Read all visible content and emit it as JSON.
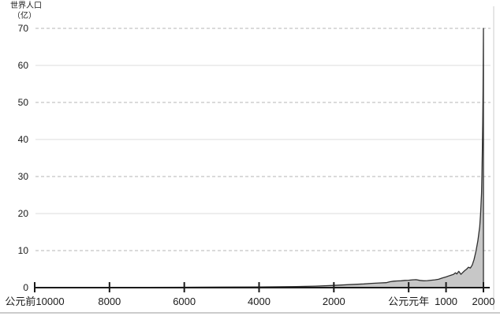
{
  "title": {
    "line1": "世界人口",
    "line2": "（亿）"
  },
  "chart_data": {
    "type": "area",
    "title": "世界人口（亿）",
    "ylabel": "世界人口（亿）",
    "xlabel": "",
    "legend": "none",
    "grid": "horizontal",
    "x_axis": {
      "range": [
        -10000,
        2000
      ],
      "ticks": [
        {
          "year": -10000,
          "label": "公元前10000"
        },
        {
          "year": -8000,
          "label": "8000"
        },
        {
          "year": -6000,
          "label": "6000"
        },
        {
          "year": -4000,
          "label": "4000"
        },
        {
          "year": -2000,
          "label": "2000"
        },
        {
          "year": 0,
          "label": "公元元年"
        },
        {
          "year": 1000,
          "label": "1000"
        },
        {
          "year": 2000,
          "label": "2000"
        }
      ]
    },
    "y_axis": {
      "range": [
        0,
        70
      ],
      "ticks": [
        0,
        10,
        20,
        30,
        40,
        50,
        60,
        70
      ],
      "unit": "亿",
      "dashed_gridlines": [
        10,
        30,
        50,
        70
      ],
      "solid_gridlines": [
        20,
        40,
        60
      ]
    },
    "series": [
      {
        "name": "世界人口",
        "points": [
          [
            -10000,
            0.04
          ],
          [
            -9000,
            0.05
          ],
          [
            -8000,
            0.06
          ],
          [
            -7000,
            0.08
          ],
          [
            -6000,
            0.11
          ],
          [
            -5000,
            0.15
          ],
          [
            -4000,
            0.2
          ],
          [
            -3000,
            0.3
          ],
          [
            -2500,
            0.4
          ],
          [
            -2000,
            0.6
          ],
          [
            -1600,
            0.8
          ],
          [
            -1200,
            1.0
          ],
          [
            -1000,
            1.15
          ],
          [
            -800,
            1.25
          ],
          [
            -600,
            1.35
          ],
          [
            -500,
            1.6
          ],
          [
            -400,
            1.75
          ],
          [
            -300,
            1.8
          ],
          [
            -200,
            1.85
          ],
          [
            -100,
            1.95
          ],
          [
            1,
            2.0
          ],
          [
            100,
            2.1
          ],
          [
            200,
            2.15
          ],
          [
            300,
            1.95
          ],
          [
            400,
            1.85
          ],
          [
            500,
            1.9
          ],
          [
            600,
            2.0
          ],
          [
            700,
            2.1
          ],
          [
            800,
            2.25
          ],
          [
            900,
            2.6
          ],
          [
            1000,
            2.9
          ],
          [
            1100,
            3.25
          ],
          [
            1200,
            3.6
          ],
          [
            1250,
            4.0
          ],
          [
            1290,
            3.7
          ],
          [
            1340,
            4.4
          ],
          [
            1400,
            3.6
          ],
          [
            1450,
            4.1
          ],
          [
            1500,
            4.6
          ],
          [
            1550,
            5.0
          ],
          [
            1600,
            5.5
          ],
          [
            1650,
            5.3
          ],
          [
            1700,
            6.1
          ],
          [
            1750,
            7.6
          ],
          [
            1800,
            9.8
          ],
          [
            1850,
            12.6
          ],
          [
            1900,
            16.5
          ],
          [
            1925,
            20
          ],
          [
            1950,
            25.5
          ],
          [
            1960,
            30.5
          ],
          [
            1970,
            37
          ],
          [
            1980,
            44.5
          ],
          [
            1990,
            53
          ],
          [
            2000,
            70
          ]
        ]
      }
    ],
    "annotations": {
      "peak_value": 70,
      "peak_x_label": "2000"
    },
    "colors": {
      "fill": "#c7c7c7",
      "line": "#2e2e2e",
      "axis": "#1a1a1a",
      "grid_dashed": "#b5b5b5",
      "grid_solid": "#dcdcdc",
      "text": "#1a1a1a",
      "frame": "#cccccc",
      "background": "#ffffff"
    }
  }
}
